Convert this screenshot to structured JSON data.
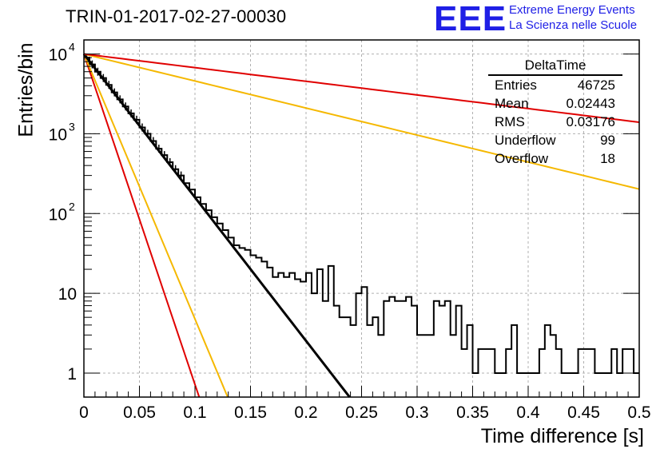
{
  "header": {
    "title": "TRIN-01-2017-02-27-00030",
    "logo_text": "EEE",
    "logo_line1": "Extreme Energy Events",
    "logo_line2": "La Scienza nelle Scuole"
  },
  "colors": {
    "logo": "#1f1fe6",
    "hist": "#000000",
    "red_fit": "#e00000",
    "yellow_fit": "#f5b800",
    "black_fit": "#000000",
    "grid": "#b0b0b0"
  },
  "stats": {
    "title": "DeltaTime",
    "rows": [
      {
        "label": "Entries",
        "value": "46725"
      },
      {
        "label": "Mean",
        "value": "0.02443"
      },
      {
        "label": "RMS",
        "value": "0.03176"
      },
      {
        "label": "Underflow",
        "value": "99"
      },
      {
        "label": "Overflow",
        "value": "18"
      }
    ]
  },
  "chart_data": {
    "type": "line",
    "xlabel": "Time difference [s]",
    "ylabel": "Entries/bin",
    "xlim": [
      0,
      0.5
    ],
    "ylim": [
      0.5,
      15000
    ],
    "yscale": "log",
    "grid": true,
    "x_ticks": [
      "0",
      "0.05",
      "0.1",
      "0.15",
      "0.2",
      "0.25",
      "0.3",
      "0.35",
      "0.4",
      "0.45",
      "0.5"
    ],
    "y_ticks": [
      {
        "value": 1,
        "label": "1"
      },
      {
        "value": 10,
        "label": "10"
      },
      {
        "value": 100,
        "label": "10",
        "exp": "2"
      },
      {
        "value": 1000,
        "label": "10",
        "exp": "3"
      },
      {
        "value": 10000,
        "label": "10",
        "exp": "4"
      }
    ],
    "histogram": {
      "name": "DeltaTime",
      "bin_width": 0.005,
      "values": [
        9000,
        7400,
        6000,
        5000,
        4100,
        3300,
        2700,
        2200,
        1800,
        1500,
        1200,
        1000,
        810,
        650,
        540,
        440,
        360,
        300,
        240,
        200,
        160,
        132,
        110,
        90,
        75,
        62,
        50,
        40,
        37,
        35,
        30,
        28,
        25,
        21,
        16,
        18,
        16,
        18,
        15,
        14,
        18,
        10,
        20,
        8,
        22,
        7,
        5,
        5,
        4,
        10,
        12,
        4,
        5,
        3,
        8,
        9,
        8,
        8,
        9,
        7,
        3,
        3,
        3,
        8,
        7,
        8,
        3,
        7,
        2,
        4,
        1,
        2,
        2,
        2,
        1,
        1,
        2,
        4,
        1,
        1,
        1,
        1,
        2,
        4,
        3,
        2,
        1,
        1,
        1,
        2,
        2,
        2,
        1,
        1,
        1,
        2,
        1,
        2,
        2,
        1
      ]
    },
    "fits": [
      {
        "color": "#e00000",
        "amplitude": 10000,
        "slope": -95.4
      },
      {
        "color": "#f5b800",
        "amplitude": 10000,
        "slope": -76.5
      },
      {
        "color": "#000000",
        "amplitude": 10000,
        "slope": -41.4
      },
      {
        "color": "#f5b800",
        "amplitude": 10000,
        "slope": -7.8
      },
      {
        "color": "#e00000",
        "amplitude": 10000,
        "slope": -3.94
      }
    ]
  }
}
